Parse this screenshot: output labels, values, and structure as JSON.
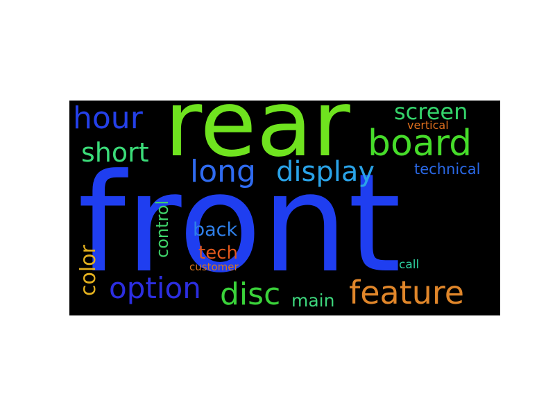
{
  "words": [
    {
      "id": "front",
      "text": "front",
      "color": "#1f3ef0",
      "rotated": false
    },
    {
      "id": "rear",
      "text": "rear",
      "color": "#6fe31f",
      "rotated": false
    },
    {
      "id": "board",
      "text": "board",
      "color": "#46dc2a",
      "rotated": false
    },
    {
      "id": "hour",
      "text": "hour",
      "color": "#2440e8",
      "rotated": false
    },
    {
      "id": "screen",
      "text": "screen",
      "color": "#34d36a",
      "rotated": false
    },
    {
      "id": "short",
      "text": "short",
      "color": "#3bdc79",
      "rotated": false
    },
    {
      "id": "vertical",
      "text": "vertical",
      "color": "#e0701e",
      "rotated": false
    },
    {
      "id": "long",
      "text": "long",
      "color": "#2f6bf0",
      "rotated": false
    },
    {
      "id": "display",
      "text": "display",
      "color": "#2aa3e8",
      "rotated": false
    },
    {
      "id": "technical",
      "text": "technical",
      "color": "#2a68e6",
      "rotated": false
    },
    {
      "id": "control",
      "text": "control",
      "color": "#3fd46a",
      "rotated": true
    },
    {
      "id": "back",
      "text": "back",
      "color": "#2f7fe8",
      "rotated": false
    },
    {
      "id": "tech",
      "text": "tech",
      "color": "#e0571c",
      "rotated": false
    },
    {
      "id": "customer",
      "text": "customer",
      "color": "#d7751f",
      "rotated": false
    },
    {
      "id": "call",
      "text": "call",
      "color": "#2ed3a2",
      "rotated": false
    },
    {
      "id": "color",
      "text": "color",
      "color": "#e3b01e",
      "rotated": true
    },
    {
      "id": "option",
      "text": "option",
      "color": "#2c2ee0",
      "rotated": false
    },
    {
      "id": "disc",
      "text": "disc",
      "color": "#3ad33a",
      "rotated": false
    },
    {
      "id": "main",
      "text": "main",
      "color": "#3dd57c",
      "rotated": false
    },
    {
      "id": "feature",
      "text": "feature",
      "color": "#e0862a",
      "rotated": false
    }
  ]
}
